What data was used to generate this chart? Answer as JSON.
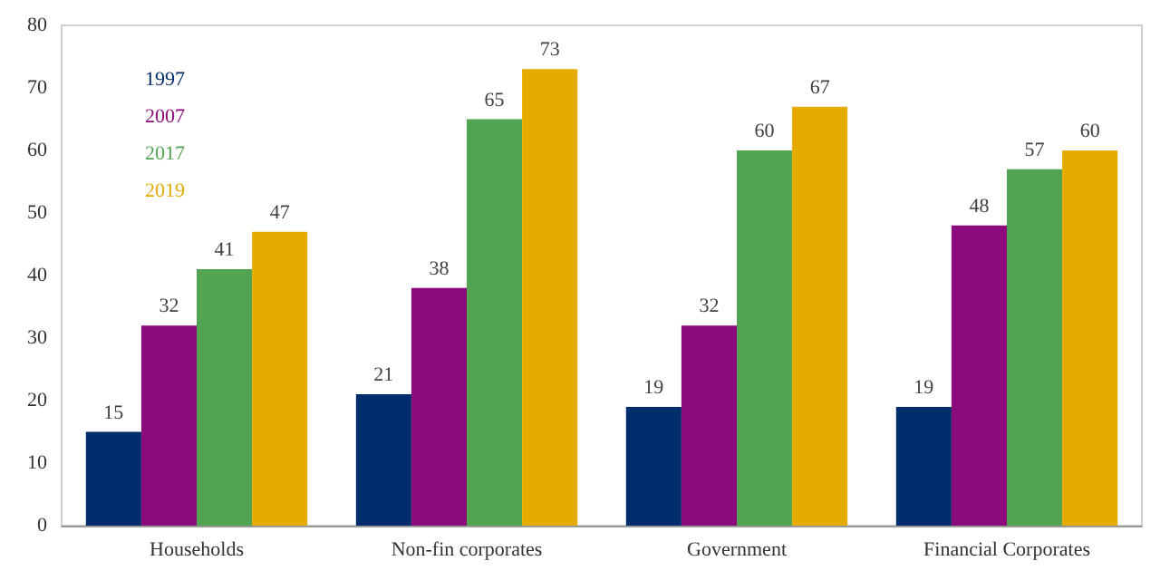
{
  "chart_data": {
    "type": "bar",
    "categories": [
      "Households",
      "Non-fin corporates",
      "Government",
      "Financial Corporates"
    ],
    "series": [
      {
        "name": "1997",
        "color": "#002d6b",
        "values": [
          15,
          21,
          19,
          19
        ]
      },
      {
        "name": "2007",
        "color": "#8c0b7c",
        "values": [
          32,
          38,
          32,
          48
        ]
      },
      {
        "name": "2017",
        "color": "#52a452",
        "values": [
          41,
          65,
          60,
          57
        ]
      },
      {
        "name": "2019",
        "color": "#e5ab00",
        "values": [
          47,
          73,
          67,
          60
        ]
      }
    ],
    "ylim": [
      0,
      80
    ],
    "yticks": [
      0,
      10,
      20,
      30,
      40,
      50,
      60,
      70,
      80
    ],
    "grid": false,
    "legend": "top left",
    "data_labels": true
  }
}
